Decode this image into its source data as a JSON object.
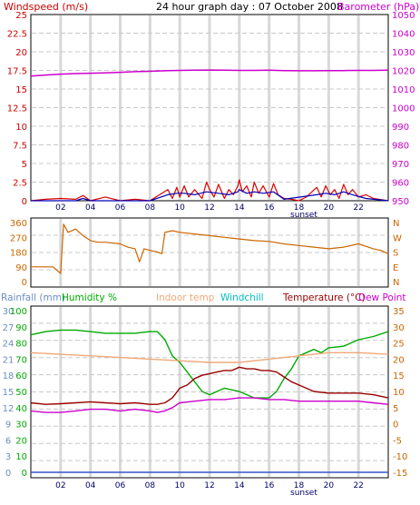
{
  "chart_data": [
    {
      "id": "wind-baro",
      "type": "line",
      "title": "24 hour graph day : 07 October 2008",
      "left_axis_label": "Windspeed (m/s)",
      "right_axis_label": "Barometer (hPa)",
      "left_ylim": [
        0,
        25
      ],
      "left_ticks": [
        "25",
        "22.5",
        "20",
        "17.5",
        "15",
        "12.5",
        "10",
        "7.5",
        "5",
        "2.5",
        "0"
      ],
      "right_ylim": [
        950,
        1050
      ],
      "right_ticks": [
        "1050",
        "1040",
        "1030",
        "1020",
        "1010",
        "1000",
        "990",
        "980",
        "970",
        "960",
        "950"
      ],
      "xlim": [
        0,
        24
      ],
      "x_ticks": [
        "02",
        "04",
        "06",
        "08",
        "10",
        "12",
        "14",
        "16",
        "18",
        "20",
        "22"
      ],
      "x_extra_label": "sunset",
      "grid": true,
      "series": [
        {
          "name": "Barometer",
          "axis": "right",
          "color": "#cc00cc",
          "x": [
            0,
            1,
            2,
            3,
            4,
            5,
            6,
            7,
            8,
            9,
            10,
            11,
            12,
            13,
            14,
            15,
            16,
            17,
            18,
            19,
            20,
            21,
            22,
            23,
            24
          ],
          "values": [
            1017,
            1017.5,
            1018,
            1018.3,
            1018.5,
            1018.7,
            1019,
            1019.3,
            1019.5,
            1019.8,
            1020,
            1020.1,
            1020.2,
            1020.1,
            1020,
            1020,
            1020.1,
            1019.9,
            1019.8,
            1019.8,
            1019.9,
            1019.9,
            1020,
            1020,
            1020.1
          ]
        },
        {
          "name": "Windspeed gust",
          "axis": "left",
          "color": "#dd0000",
          "x": [
            0,
            1,
            2,
            3,
            3.5,
            4,
            5,
            6,
            7,
            8,
            9.2,
            9.5,
            9.8,
            10,
            10.3,
            10.6,
            11,
            11.5,
            11.8,
            12,
            12.3,
            12.6,
            13,
            13.3,
            13.6,
            13.9,
            14,
            14.2,
            14.5,
            14.8,
            15,
            15.3,
            15.6,
            16,
            16.3,
            16.6,
            17,
            17.5,
            18,
            18.5,
            19.2,
            19.5,
            19.8,
            20.1,
            20.4,
            20.7,
            21,
            21.3,
            21.6,
            22,
            22.5,
            23,
            24
          ],
          "values": [
            0,
            0.2,
            0.3,
            0.2,
            0.7,
            0,
            0.5,
            0,
            0.2,
            0,
            1.5,
            0.3,
            1.8,
            0.5,
            2,
            0.5,
            1.5,
            0.3,
            2.5,
            1.5,
            0.5,
            2.2,
            0.3,
            1.5,
            0.8,
            2,
            2.8,
            1.2,
            2,
            0.5,
            2.5,
            1,
            2,
            0.5,
            2.3,
            0.8,
            0.3,
            0.2,
            0,
            0.5,
            1.8,
            0.5,
            2,
            0.8,
            1.5,
            0.3,
            2.2,
            0.8,
            1.5,
            0.5,
            0.8,
            0.3,
            0
          ]
        },
        {
          "name": "Windspeed average",
          "axis": "left",
          "color": "#0000bb",
          "x": [
            0,
            3,
            3.5,
            4,
            8,
            9.2,
            9.8,
            10.3,
            11,
            11.8,
            12.6,
            13.3,
            13.9,
            14,
            14.5,
            15,
            15.6,
            16.3,
            17,
            19.2,
            19.8,
            20.4,
            21,
            21.6,
            22.5,
            24
          ],
          "values": [
            0,
            0,
            0.3,
            0,
            0,
            0.8,
            1,
            1,
            0.8,
            1.2,
            1,
            0.8,
            1.2,
            1.5,
            1,
            1.2,
            1,
            1.2,
            0.2,
            0.8,
            1,
            0.8,
            1.2,
            0.8,
            0.3,
            0
          ]
        }
      ]
    },
    {
      "id": "wind-direction",
      "type": "line",
      "ylim": [
        0,
        360
      ],
      "left_ticks": [
        "360",
        "270",
        "180",
        "90",
        "0"
      ],
      "right_ticks": [
        "N",
        "W",
        "S",
        "E",
        "N"
      ],
      "xlim": [
        0,
        24
      ],
      "grid": true,
      "series": [
        {
          "name": "Wind direction",
          "axis": "left",
          "color": "#cc6600",
          "x": [
            0,
            1.5,
            2,
            2.2,
            2.5,
            3,
            3.5,
            4,
            4.5,
            5,
            6,
            6.5,
            7,
            7.3,
            7.6,
            8,
            8.5,
            8.8,
            9,
            9.5,
            10,
            11,
            12,
            13,
            14,
            15,
            16,
            17,
            18,
            19,
            20,
            21,
            22,
            23,
            23.5,
            24
          ],
          "values": [
            90,
            90,
            50,
            350,
            300,
            320,
            280,
            250,
            240,
            240,
            230,
            210,
            200,
            120,
            200,
            190,
            180,
            170,
            300,
            310,
            300,
            290,
            280,
            270,
            260,
            250,
            245,
            230,
            220,
            210,
            200,
            210,
            230,
            200,
            190,
            170
          ]
        }
      ]
    },
    {
      "id": "temperature-humidity",
      "type": "line",
      "legend": [
        "Rainfall (mm)",
        "Humidity %",
        "Indoor temp",
        "Windchill",
        "Temperature (°C)",
        "Dew Point"
      ],
      "legend_colors": [
        "#6b8ec4",
        "#00aa00",
        "#f0a878",
        "#00bfbf",
        "#990000",
        "#cc00cc"
      ],
      "left_outer_ticks": [
        "30",
        "27",
        "24",
        "21",
        "18",
        "15",
        "12",
        "9",
        "6",
        "3",
        "0"
      ],
      "left_inner_ticks": [
        "100",
        "90",
        "80",
        "70",
        "60",
        "50",
        "40",
        "30",
        "20",
        "10",
        "0"
      ],
      "right_ticks": [
        "35",
        "30",
        "25",
        "20",
        "15",
        "10",
        "5",
        "0",
        "-5",
        "-10",
        "-15"
      ],
      "ylim_humidity": [
        0,
        100
      ],
      "ylim_temperature": [
        -15,
        35
      ],
      "xlim": [
        0,
        24
      ],
      "x_ticks": [
        "02",
        "04",
        "06",
        "08",
        "10",
        "12",
        "14",
        "16",
        "18",
        "20",
        "22"
      ],
      "x_extra_label": "sunset",
      "grid": true,
      "series": [
        {
          "name": "Humidity %",
          "axis": "humidity",
          "color": "#00aa00",
          "x": [
            0,
            1,
            2,
            3,
            4,
            5,
            6,
            7,
            8,
            8.5,
            9,
            9.5,
            10,
            10.5,
            11,
            11.5,
            12,
            13,
            14,
            15,
            16,
            16.5,
            17,
            17.5,
            18,
            18.5,
            19,
            19.5,
            20,
            21,
            22,
            23,
            24
          ],
          "values": [
            85,
            87,
            88,
            88,
            87,
            86,
            86,
            86,
            87,
            87,
            82,
            72,
            68,
            62,
            56,
            50,
            48,
            52,
            50,
            46,
            46,
            50,
            58,
            64,
            72,
            74,
            76,
            74,
            77,
            78,
            82,
            84,
            87
          ]
        },
        {
          "name": "Indoor temp",
          "axis": "temperature",
          "color": "#f0a878",
          "x": [
            0,
            2,
            4,
            6,
            8,
            10,
            12,
            14,
            16,
            18,
            20,
            22,
            24
          ],
          "values": [
            22,
            21.5,
            21,
            20.5,
            20,
            19.5,
            19,
            19,
            20,
            21,
            22,
            22,
            21.5
          ]
        },
        {
          "name": "Temperature (°C)",
          "axis": "temperature",
          "color": "#990000",
          "x": [
            0,
            1,
            2,
            3,
            4,
            5,
            6,
            7,
            8,
            8.5,
            9,
            9.5,
            10,
            10.5,
            11,
            11.5,
            12,
            12.5,
            13,
            13.5,
            14,
            14.5,
            15,
            15.5,
            16,
            16.5,
            17,
            17.5,
            18,
            18.5,
            19,
            20,
            21,
            22,
            23,
            24
          ],
          "values": [
            6.5,
            6,
            6.2,
            6.5,
            6.8,
            6.5,
            6.2,
            6.5,
            6,
            6,
            6.5,
            8,
            11,
            12,
            14,
            15,
            15.5,
            16,
            16.5,
            16.5,
            17.5,
            17,
            17,
            16.5,
            16.5,
            16,
            14.5,
            13,
            12,
            11,
            10,
            9.5,
            9.5,
            9.5,
            9,
            8
          ]
        },
        {
          "name": "Dew Point",
          "axis": "temperature",
          "color": "#cc00cc",
          "x": [
            0,
            1,
            2,
            3,
            4,
            5,
            6,
            7,
            8,
            8.5,
            9,
            9.5,
            10,
            11,
            12,
            13,
            14,
            15,
            16,
            17,
            18,
            19,
            20,
            21,
            22,
            23,
            24
          ],
          "values": [
            4,
            3.5,
            3.5,
            4,
            4.5,
            4.5,
            4,
            4.5,
            4,
            3.5,
            4,
            5,
            6.5,
            7,
            7.5,
            7.5,
            8,
            8,
            7.5,
            7.5,
            7,
            7,
            7,
            7,
            7,
            6.5,
            6
          ]
        },
        {
          "name": "Rainfall (mm)",
          "axis": "rainfall",
          "color": "#3355cc",
          "x": [
            0,
            24
          ],
          "values": [
            0,
            0
          ]
        }
      ]
    }
  ]
}
